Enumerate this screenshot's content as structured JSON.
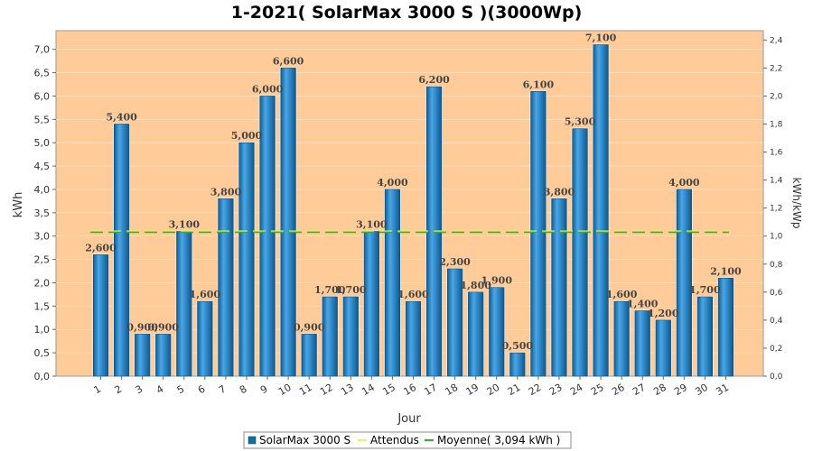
{
  "chart_data": {
    "type": "bar",
    "title": "1-2021( SolarMax 3000 S )(3000Wp)",
    "xlabel": "Jour",
    "ylabel": "kWh",
    "ylabel_right": "kWh/kWp",
    "ylim": [
      0,
      7.4
    ],
    "ylim_right": [
      0,
      2.4667
    ],
    "categories": [
      "1",
      "2",
      "3",
      "4",
      "5",
      "6",
      "7",
      "8",
      "9",
      "10",
      "11",
      "12",
      "13",
      "14",
      "15",
      "16",
      "17",
      "18",
      "19",
      "20",
      "21",
      "22",
      "23",
      "24",
      "25",
      "26",
      "27",
      "28",
      "29",
      "30",
      "31"
    ],
    "y_ticks": [
      "0,0",
      "0,5",
      "1,0",
      "1,5",
      "2,0",
      "2,5",
      "3,0",
      "3,5",
      "4,0",
      "4,5",
      "5,0",
      "5,5",
      "6,0",
      "6,5",
      "7,0"
    ],
    "y_ticks_right": [
      "0,0",
      "0,2",
      "0,4",
      "0,6",
      "0,8",
      "1,0",
      "1,2",
      "1,4",
      "1,6",
      "1,8",
      "2,0",
      "2,2",
      "2,4"
    ],
    "series": [
      {
        "name": "SolarMax 3000 S",
        "values": [
          2.6,
          5.4,
          0.9,
          0.9,
          3.1,
          1.6,
          3.8,
          5.0,
          6.0,
          6.6,
          0.9,
          1.7,
          1.7,
          3.1,
          4.0,
          1.6,
          6.2,
          2.3,
          1.8,
          1.9,
          0.5,
          6.1,
          3.8,
          5.3,
          7.1,
          1.6,
          1.4,
          1.2,
          4.0,
          1.7,
          2.1
        ],
        "labels": [
          "2,600",
          "5,400",
          "0,900",
          "0,900",
          "3,100",
          "1,600",
          "3,800",
          "5,000",
          "6,000",
          "6,600",
          "0,900",
          "1,700",
          "1,700",
          "3,100",
          "4,000",
          "1,600",
          "6,200",
          "2,300",
          "1,800",
          "1,900",
          "0,500",
          "6,100",
          "3,800",
          "5,300",
          "7,100",
          "1,600",
          "1,400",
          "1,200",
          "4,000",
          "1,700",
          "2,100"
        ],
        "color": "#0b6fb0"
      }
    ],
    "reference_lines": [
      {
        "name": "Attendus",
        "color": "#f0f060",
        "value": 3.094
      },
      {
        "name": "Moyenne( 3,094 kWh )",
        "color": "#22bb22",
        "value": 3.094
      }
    ],
    "legend": {
      "placement": "bottom",
      "items": [
        "SolarMax 3000 S",
        "Attendus",
        "Moyenne( 3,094 kWh )"
      ]
    },
    "colors": {
      "plot_background": "#ffcc99",
      "bar": "#0b6fb0",
      "bar_highlight": "#5fb0e8"
    },
    "grid": true
  }
}
